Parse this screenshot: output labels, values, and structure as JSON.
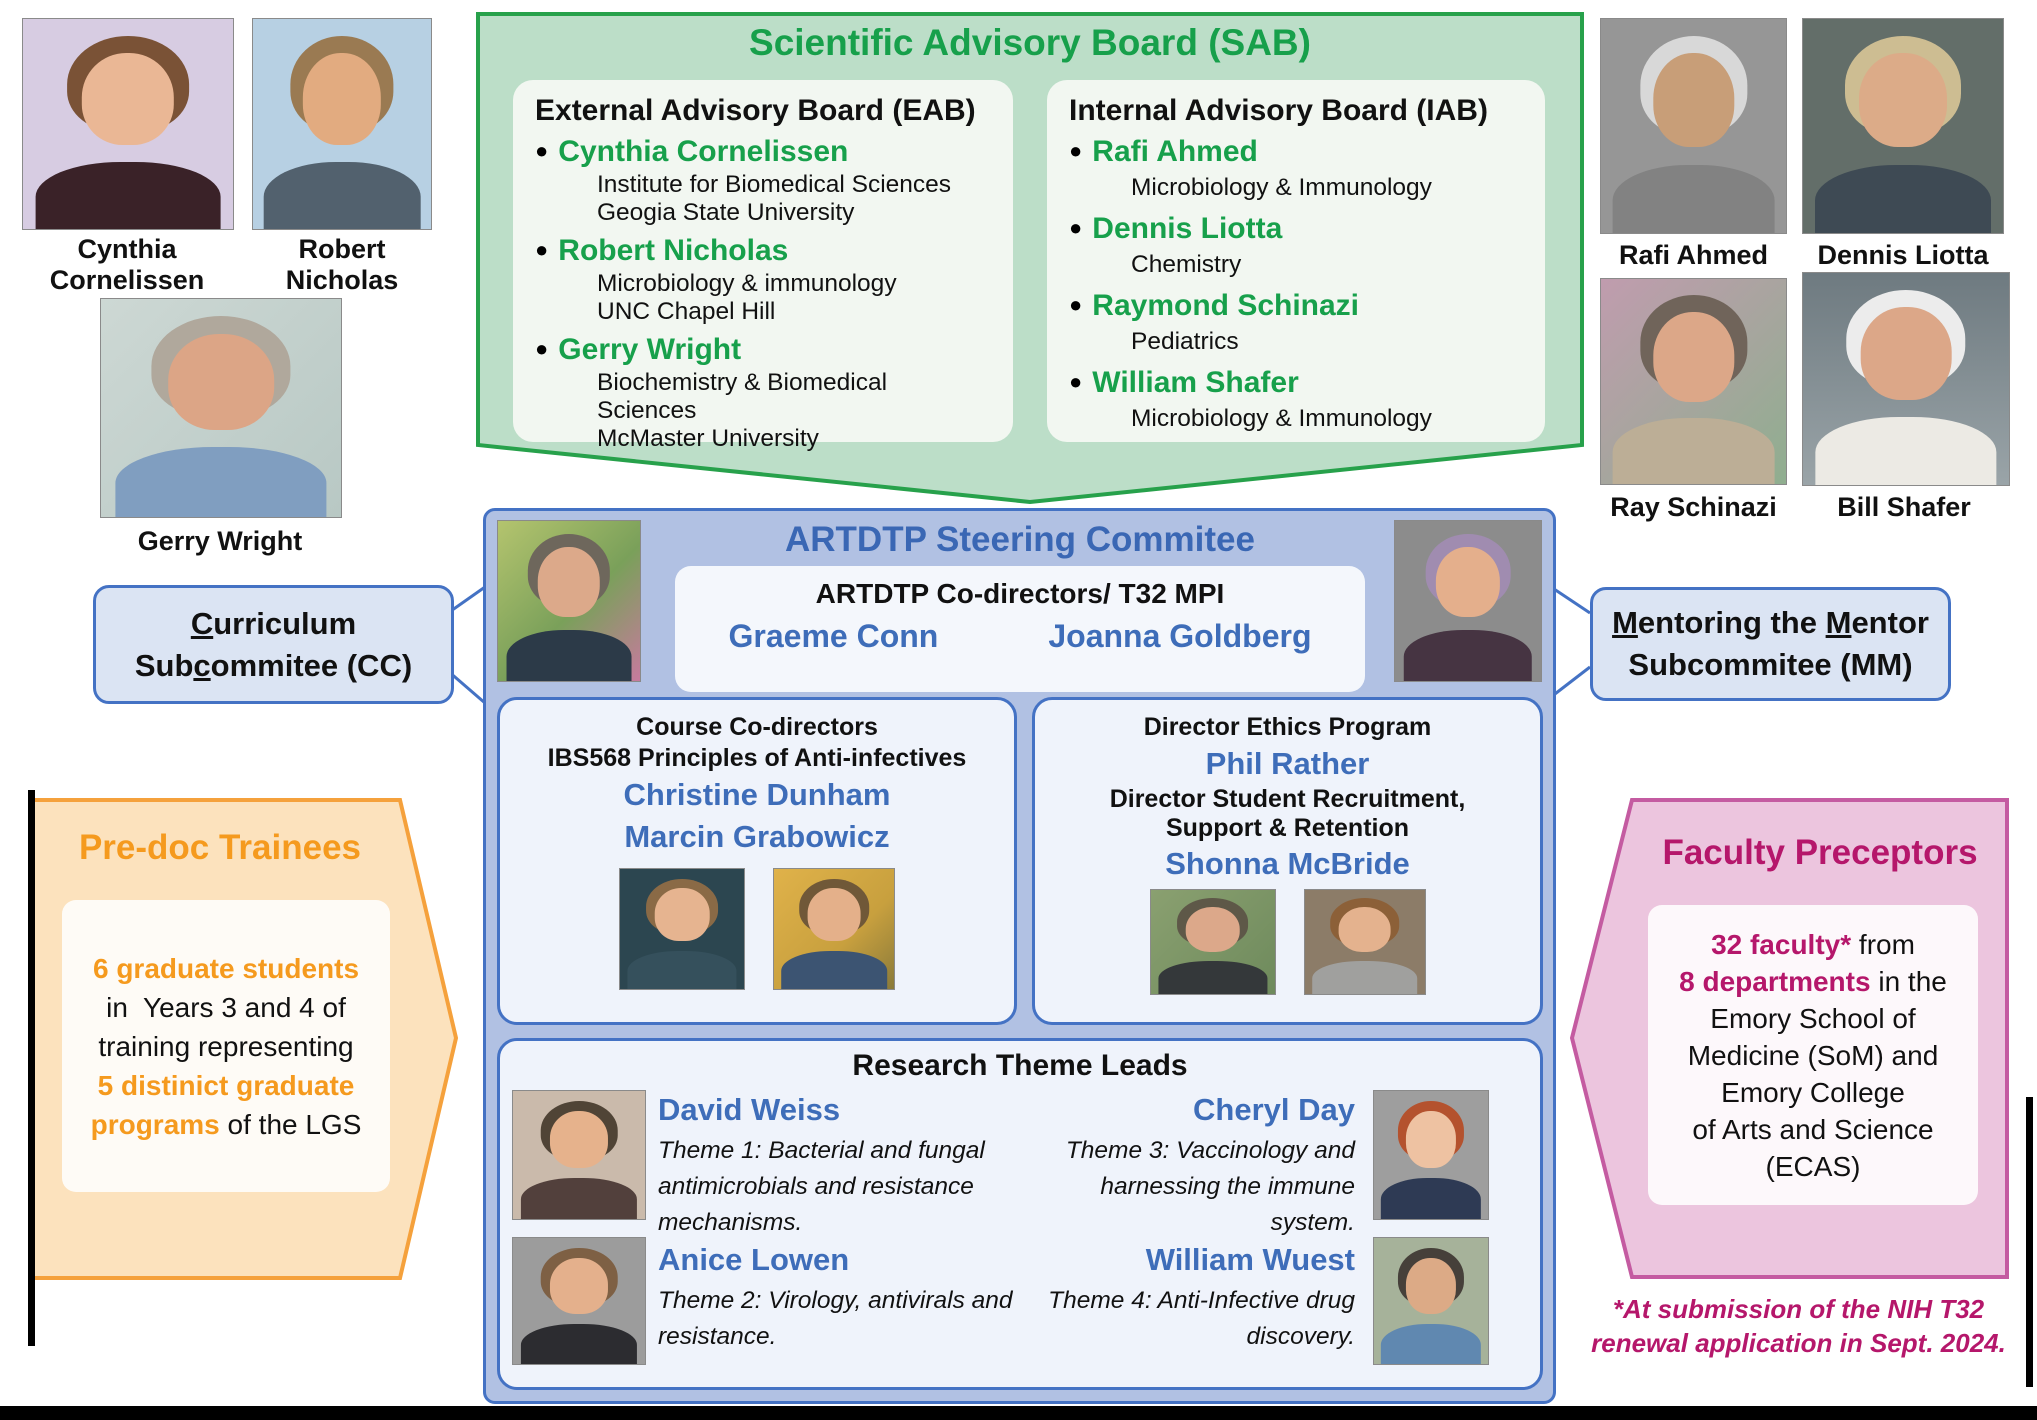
{
  "palette": {
    "green": "#27A14B",
    "green_fill": "#BCDEC8",
    "green_text": "#17A04B",
    "panel_white": "#F2F7F1",
    "blue_border": "#4472C4",
    "blue_fill": "#B1C1E3",
    "blue_panel": "#EFF3FB",
    "blue_text": "#3A67B4",
    "name_blue": "#3E6DB9",
    "subbox_fill": "#DBE4F3",
    "orange": "#F5A13C",
    "orange_fill": "#FCE2BD",
    "orange_text": "#F59A1E",
    "pink": "#C45BA1",
    "pink_fill": "#ECC5DE",
    "pink_text": "#B5176B"
  },
  "sab": {
    "title": "Scientific Advisory Board (SAB)",
    "eab": {
      "header": "External Advisory Board (EAB)",
      "members": [
        {
          "name": "Cynthia Cornelissen",
          "line1": "Institute for Biomedical Sciences",
          "line2": "Geogia State University"
        },
        {
          "name": "Robert Nicholas",
          "line1": "Microbiology & immunology",
          "line2": "UNC Chapel Hill"
        },
        {
          "name": "Gerry Wright",
          "line1": "Biochemistry & Biomedical Sciences",
          "line2": "McMaster University"
        }
      ]
    },
    "iab": {
      "header": "Internal Advisory Board (IAB)",
      "members": [
        {
          "name": "Rafi Ahmed",
          "line1": "Microbiology & Immunology"
        },
        {
          "name": "Dennis Liotta",
          "line1": "Chemistry"
        },
        {
          "name": "Raymond Schinazi",
          "line1": "Pediatrics"
        },
        {
          "name": "William Shafer",
          "line1": "Microbiology & Immunology"
        }
      ]
    }
  },
  "steering": {
    "title": "ARTDTP Steering Commitee",
    "codirectors": {
      "header": "ARTDTP Co-directors/ T32 MPI",
      "name1": "Graeme Conn",
      "name2": "Joanna Goldberg"
    },
    "course": {
      "line1": "Course Co-directors",
      "line2": "IBS568 Principles of Anti-infectives",
      "name1": "Christine Dunham",
      "name2": "Marcin Grabowicz"
    },
    "ethics": {
      "role1": "Director Ethics Program",
      "name1": "Phil Rather",
      "role2a": "Director Student Recruitment,",
      "role2b": "Support & Retention",
      "name2": "Shonna McBride"
    },
    "research": {
      "title": "Research Theme Leads",
      "themes": [
        {
          "name": "David Weiss",
          "desc": "Theme 1: Bacterial and fungal antimicrobials and resistance mechanisms."
        },
        {
          "name": "Cheryl Day",
          "desc": "Theme 3: Vaccinology and harnessing the immune system."
        },
        {
          "name": "Anice Lowen",
          "desc": "Theme 2: Virology, antivirals and resistance."
        },
        {
          "name": "William Wuest",
          "desc": "Theme 4: Anti-Infective drug discovery."
        }
      ]
    }
  },
  "cc": {
    "l1_u": "C",
    "l1_rest": "urriculum",
    "l2_pre": "Sub",
    "l2_u": "c",
    "l2_rest": "ommitee (CC)"
  },
  "mm": {
    "l1_u1": "M",
    "l1_mid": "entoring the ",
    "l1_u2": "M",
    "l1_rest": "entor",
    "l2": "Subcommitee (MM)"
  },
  "predoc": {
    "title": "Pre-doc Trainees",
    "l1": "6 graduate students",
    "l2": "in  Years 3 and 4 of",
    "l3": "training representing",
    "l4": "5 distinict graduate",
    "l5_hl": "programs",
    "l5_rest": " of the LGS"
  },
  "faculty": {
    "title": "Faculty Preceptors",
    "l1_hl": "32 faculty*",
    "l1_rest": " from",
    "l2_hl": "8 departments",
    "l2_rest": " in the",
    "l3": "Emory School of",
    "l4": "Medicine (SoM) and",
    "l5": "Emory College",
    "l6": "of Arts and Science",
    "l7": "(ECAS)",
    "foot1": "*At submission of the NIH T32",
    "foot2": "renewal application in Sept. 2024."
  },
  "photos": {
    "cynthia": {
      "label": "Cynthia\nCornelissen",
      "bg": "#D7CCE2",
      "skin": "#EAB795",
      "hair": "#7A5236",
      "shirt": "#3A2228"
    },
    "robert": {
      "label": "Robert\nNicholas",
      "bg": "#B7D0E3",
      "skin": "#E2AB80",
      "hair": "#9A7A52",
      "shirt": "#52616E"
    },
    "gerry": {
      "label": "Gerry Wright",
      "bg": "linear-gradient(135deg,#CDD8D4,#B8C8C4)",
      "skin": "#DCA586",
      "hair": "#B0A89C",
      "shirt": "#809EC0"
    },
    "rafi": {
      "label": "Rafi Ahmed",
      "bg": "#969696",
      "skin": "#C89E78",
      "hair": "#D8D8D8",
      "shirt": "#828282"
    },
    "dennis": {
      "label": "Dennis Liotta",
      "bg": "#636E69",
      "skin": "#DCAB88",
      "hair": "#CDBD92",
      "shirt": "#3E4A54"
    },
    "ray": {
      "label": "Ray Schinazi",
      "bg": "linear-gradient(135deg,#C09CAE,#8FAE8F)",
      "skin": "#DCA788",
      "hair": "#70645A",
      "shirt": "#BCAE96"
    },
    "bill": {
      "label": "Bill Shafer",
      "bg": "linear-gradient(180deg,#6E7A80,#9AA4A8)",
      "skin": "#DCA788",
      "hair": "#ECECEC",
      "shirt": "#ECEAE4"
    },
    "graeme": {
      "label": "Graeme Conn",
      "bg": "linear-gradient(135deg,#B4C46E,#7AA05A 55%,#C77A9E)",
      "skin": "#DCA98A",
      "hair": "#6E675C",
      "shirt": "#2C3A48"
    },
    "joanna": {
      "label": "Joanna Goldberg",
      "bg": "#8C8C8C",
      "skin": "#E4AF8C",
      "hair": "#A08CB0",
      "shirt": "#463442"
    },
    "christine": {
      "label": "Christine Dunham",
      "bg": "#2C4650",
      "skin": "#E6B490",
      "hair": "#8A6A46",
      "shirt": "#35505C"
    },
    "marcin": {
      "label": "Marcin Grabowicz",
      "bg": "linear-gradient(135deg,#E0B24A,#C8A03E 60%,#8A7A3A)",
      "skin": "#E4B08A",
      "hair": "#705838",
      "shirt": "#3C5472"
    },
    "phil": {
      "label": "Phil Rather",
      "bg": "linear-gradient(135deg,#8AA070,#6E8A5C)",
      "skin": "#DCA88A",
      "hair": "#5E5848",
      "shirt": "#34383A"
    },
    "shonna": {
      "label": "Shonna McBride",
      "bg": "#8C7C68",
      "skin": "#E4B28E",
      "hair": "#8C6038",
      "shirt": "#A0A09E"
    },
    "david": {
      "label": "David Weiss",
      "bg": "#CABAAB",
      "skin": "#E6B28C",
      "hair": "#504436",
      "shirt": "#52403C"
    },
    "anice": {
      "label": "Anice Lowen",
      "bg": "#9C9C9C",
      "skin": "#E4B08C",
      "hair": "#7E6044",
      "shirt": "#2C2C30"
    },
    "cheryl": {
      "label": "Cheryl Day",
      "bg": "#9E9E9E",
      "skin": "#EEC2A2",
      "hair": "#B4522E",
      "shirt": "#2E3A54"
    },
    "wuest": {
      "label": "William Wuest",
      "bg": "#A6B29A",
      "skin": "#DCAA86",
      "hair": "#46403A",
      "shirt": "#6088B0"
    }
  }
}
